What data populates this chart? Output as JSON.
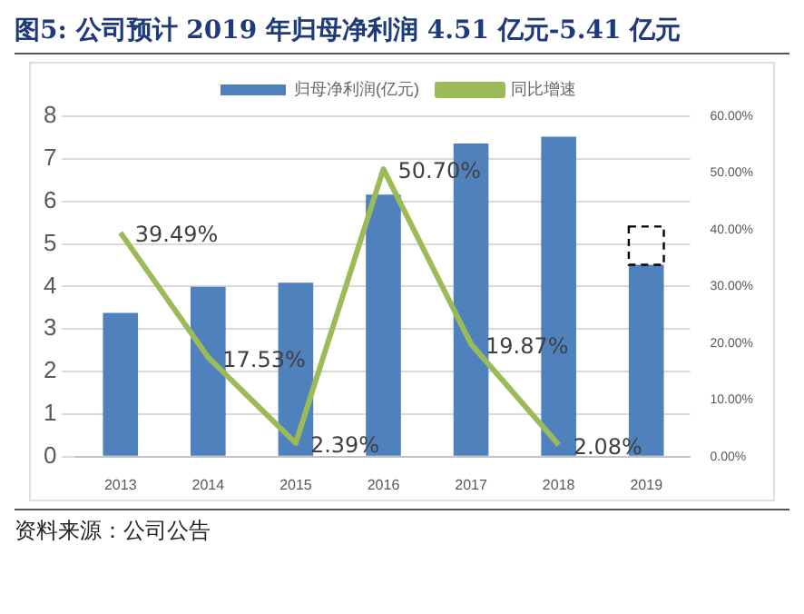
{
  "chart_data": {
    "type": "bar",
    "title": "图5:    公司预计 2019 年归母净利润 4.51 亿元-5.41 亿元",
    "categories": [
      "2013",
      "2014",
      "2015",
      "2016",
      "2017",
      "2018",
      "2019"
    ],
    "stacked": true,
    "series": [
      {
        "name": "归母净利润(亿元)",
        "color": "#4f81bd",
        "values": [
          3.38,
          3.99,
          4.09,
          6.16,
          7.36,
          7.52,
          4.51
        ]
      },
      {
        "color": "#000000",
        "line_style": "dashed",
        "values": [
          null,
          null,
          null,
          null,
          null,
          null,
          0.9
        ]
      },
      {
        "name": "同比增速",
        "type": "line",
        "axis": "y2",
        "color": "#9bbb59",
        "values": [
          39.49,
          17.53,
          2.39,
          50.7,
          19.87,
          2.08,
          null
        ],
        "value_labels": [
          "39.49%",
          "17.53%",
          "2.39%",
          "50.70%",
          "19.87%",
          "2.08%",
          null
        ]
      }
    ],
    "ylim": [
      0,
      8
    ],
    "yticks": [
      0,
      1,
      2,
      3,
      4,
      5,
      6,
      7,
      8
    ],
    "y2lim": [
      0,
      60
    ],
    "y2ticks": [
      {
        "value": 0,
        "label": "0.00%"
      },
      {
        "value": 10,
        "label": "10.00%"
      },
      {
        "value": 20,
        "label": "20.00%"
      },
      {
        "value": 30,
        "label": "30.00%"
      },
      {
        "value": 40,
        "label": "40.00%"
      },
      {
        "value": 50,
        "label": "50.00%"
      },
      {
        "value": 60,
        "label": "60.00%"
      }
    ],
    "grid": "y",
    "legend": "top",
    "annotations": [
      "资料来源：公司公告"
    ]
  }
}
